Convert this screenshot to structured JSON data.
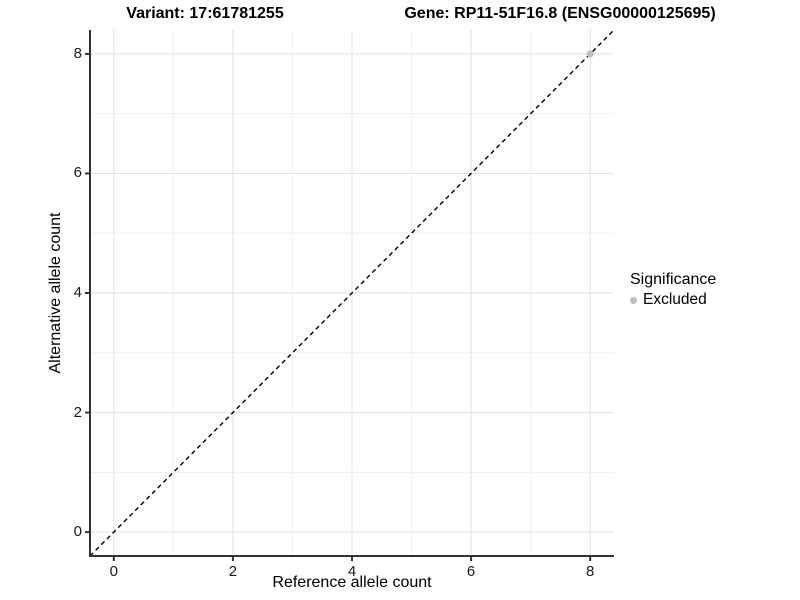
{
  "figure": {
    "title_left": "Variant: 17:61781255",
    "title_right": "Gene: RP11-51F16.8 (ENSG00000125695)"
  },
  "legend": {
    "title": "Significance",
    "items": [
      {
        "label": "Excluded",
        "color": "#bebebe"
      }
    ]
  },
  "chart_data": {
    "type": "scatter",
    "xlabel": "Reference allele count",
    "ylabel": "Alternative allele count",
    "xlim": [
      -0.4,
      8.4
    ],
    "ylim": [
      -0.4,
      8.4
    ],
    "x_ticks": [
      0,
      2,
      4,
      6,
      8
    ],
    "y_ticks": [
      0,
      2,
      4,
      6,
      8
    ],
    "x_minor_ticks": [
      1,
      3,
      5,
      7
    ],
    "y_minor_ticks": [
      1,
      3,
      5,
      7
    ],
    "grid": true,
    "legend_position": "right",
    "series": [
      {
        "name": "Excluded",
        "color": "#bebebe",
        "points": [
          {
            "x": 8,
            "y": 8
          }
        ]
      }
    ],
    "reference_line": {
      "type": "identity",
      "slope": 1,
      "intercept": 0,
      "style": "dashed",
      "color": "#000000"
    },
    "colors": {
      "grid_major": "#e2e2e2",
      "grid_minor": "#f0f0f0",
      "axis_line": "#333333",
      "text": "#000000",
      "background": "#ffffff"
    }
  }
}
